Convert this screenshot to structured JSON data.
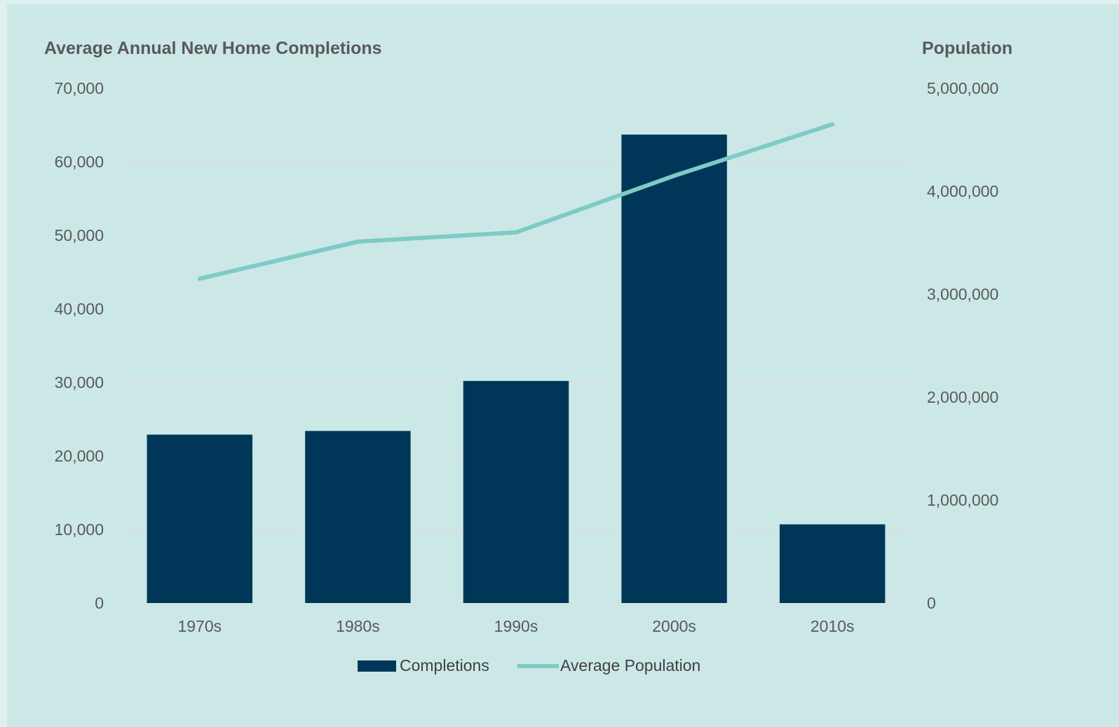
{
  "chart_data": {
    "type": "bar",
    "categories": [
      "1970s",
      "1980s",
      "1990s",
      "2000s",
      "2010s"
    ],
    "series": [
      {
        "name": "Completions",
        "type": "bar",
        "axis": "left",
        "color": "#003759",
        "values": [
          22900,
          23400,
          30200,
          63700,
          10700
        ]
      },
      {
        "name": "Average Population",
        "type": "line",
        "axis": "right",
        "color": "#7ecbc5",
        "values": [
          3150000,
          3510000,
          3600000,
          4150000,
          4650000
        ]
      }
    ],
    "ylabel": "Average Annual New Home Completions",
    "ylabel_right": "Population",
    "ylim": [
      0,
      70000
    ],
    "ylim_right": [
      0,
      5000000
    ],
    "yticks": [
      "0",
      "10,000",
      "20,000",
      "30,000",
      "40,000",
      "50,000",
      "60,000",
      "70,000"
    ],
    "yticks_right": [
      "0",
      "1,000,000",
      "2,000,000",
      "3,000,000",
      "4,000,000",
      "5,000,000"
    ],
    "grid": true,
    "legend": "bottom",
    "background": "#cbe8e7",
    "gridline_color": "#dcdcdc",
    "text_color": "#595959"
  }
}
